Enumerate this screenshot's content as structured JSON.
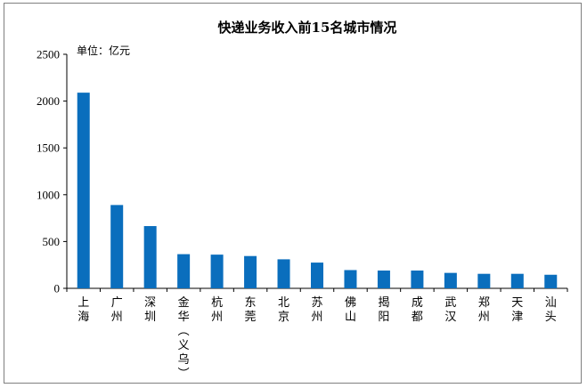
{
  "chart_data": {
    "type": "bar",
    "title": "快递业务收入前15名城市情况",
    "unit_label": "单位：亿元",
    "categories": [
      "上海",
      "广州",
      "深圳",
      "金华（义乌）",
      "杭州",
      "东莞",
      "北京",
      "苏州",
      "佛山",
      "揭阳",
      "成都",
      "武汉",
      "郑州",
      "天津",
      "汕头"
    ],
    "values": [
      2090,
      890,
      665,
      365,
      360,
      345,
      310,
      275,
      195,
      190,
      190,
      165,
      155,
      155,
      145
    ],
    "ylim": [
      0,
      2500
    ],
    "yticks": [
      "0",
      "500",
      "1000",
      "1500",
      "2000",
      "2500"
    ],
    "xlabel": "",
    "ylabel": "",
    "grid": false,
    "legend": "none",
    "bar_color": "#0a6ebd"
  }
}
